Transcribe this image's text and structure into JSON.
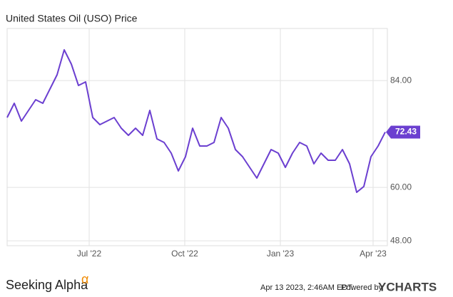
{
  "chart_data": {
    "type": "line",
    "title": "United States Oil (USO) Price",
    "x": [
      0,
      1,
      2,
      3,
      4,
      5,
      6,
      7,
      8,
      9,
      10,
      11,
      12,
      13,
      14,
      15,
      16,
      17,
      18,
      19,
      20,
      21,
      22,
      23,
      24,
      25,
      26,
      27,
      28,
      29,
      30,
      31,
      32,
      33,
      34,
      35,
      36,
      37,
      38,
      39,
      40,
      41,
      42,
      43,
      44,
      45,
      46,
      47,
      48,
      49,
      50,
      51,
      52,
      53
    ],
    "series": [
      {
        "name": "USO",
        "color": "#6b3fd0",
        "values": [
          75.7,
          78.9,
          74.9,
          77.3,
          79.7,
          78.9,
          82.1,
          85.3,
          90.9,
          87.7,
          82.9,
          83.7,
          75.7,
          74.1,
          74.9,
          75.7,
          73.3,
          71.7,
          73.3,
          71.7,
          77.3,
          70.9,
          70.1,
          67.7,
          63.7,
          66.9,
          73.3,
          69.3,
          69.3,
          70.1,
          75.7,
          73.3,
          68.5,
          66.9,
          64.5,
          62.1,
          65.3,
          68.5,
          67.7,
          64.5,
          67.7,
          70.1,
          69.3,
          65.3,
          67.7,
          66.1,
          66.1,
          68.5,
          65.3,
          58.9,
          60.2,
          66.9,
          69.3,
          72.43
        ]
      }
    ],
    "xlim": [
      0,
      53.3
    ],
    "xticks": [
      {
        "value": 11.5,
        "label": "Jul '22"
      },
      {
        "value": 24.9,
        "label": "Oct '22"
      },
      {
        "value": 38.3,
        "label": "Jan '23"
      },
      {
        "value": 51.3,
        "label": "Apr '23"
      }
    ],
    "ylim": [
      46.9,
      95.7
    ],
    "yticks": [
      {
        "value": 48,
        "label": "48.00"
      },
      {
        "value": 60,
        "label": "60.00"
      },
      {
        "value": 84,
        "label": "84.00"
      }
    ],
    "grid": true
  },
  "footer": {
    "logo": "Seeking Alpha",
    "logo_mark": "α",
    "timestamp": "Apr 13 2023, 2:46AM EDT.",
    "powered_by": "Powered by",
    "brand": "YCHARTS"
  }
}
